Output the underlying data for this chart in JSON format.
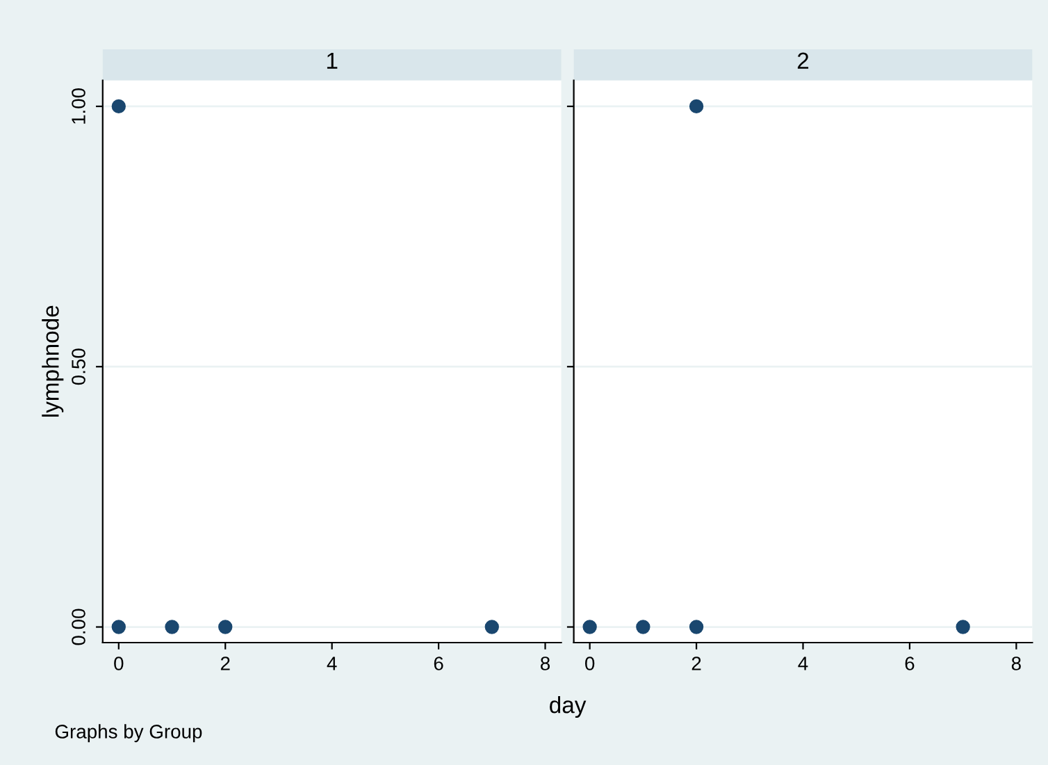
{
  "chart_data": [
    {
      "type": "scatter",
      "title": "1",
      "ylabel": "lymphnode",
      "xlabel": "day",
      "annotations": [
        "Graphs by Group"
      ],
      "x": [
        0,
        0,
        1,
        2,
        7
      ],
      "series": [
        {
          "color": "#1a476f",
          "values": [
            1,
            0,
            0,
            0,
            0
          ]
        }
      ],
      "xlim": [
        -0.3,
        8.3
      ],
      "ylim": [
        -0.03,
        1.05
      ],
      "xticks": [
        0,
        2,
        4,
        6,
        8
      ],
      "yticks": [
        {
          "value": 0,
          "label": "0.00"
        },
        {
          "value": 0.5,
          "label": "0.50"
        },
        {
          "value": 1,
          "label": "1.00"
        }
      ],
      "grid": "y",
      "marker": "circle",
      "legend": false
    },
    {
      "type": "scatter",
      "title": "2",
      "x": [
        0,
        1,
        2,
        2,
        7
      ],
      "series": [
        {
          "color": "#1a476f",
          "values": [
            0,
            0,
            0,
            1,
            0
          ]
        }
      ],
      "xlim": [
        -0.3,
        8.3
      ],
      "ylim": [
        -0.03,
        1.05
      ],
      "xticks": [
        0,
        2,
        4,
        6,
        8
      ],
      "yticks": [
        {
          "value": 0,
          "label": null
        },
        {
          "value": 0.5,
          "label": null
        },
        {
          "value": 1,
          "label": null
        }
      ],
      "grid": "y",
      "marker": "circle",
      "legend": false,
      "tick_labels": "x"
    }
  ]
}
